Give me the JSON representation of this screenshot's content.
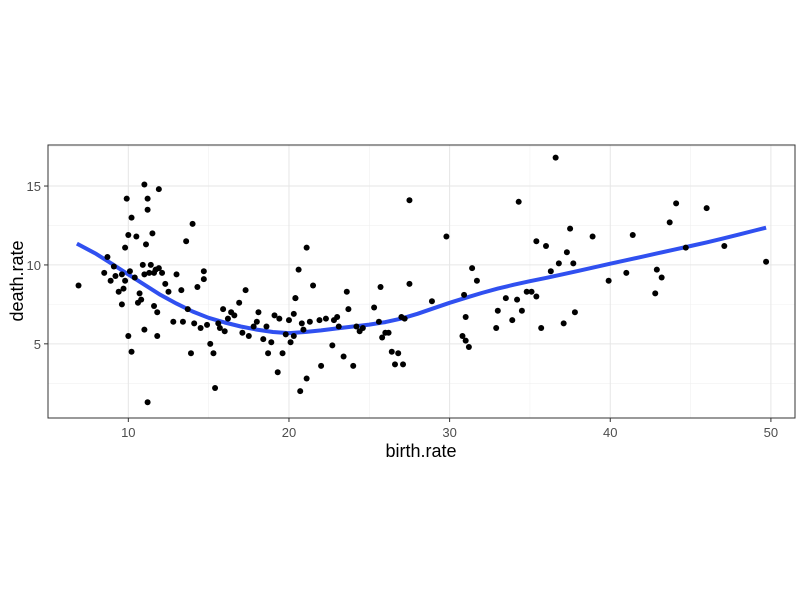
{
  "chart_data": {
    "type": "scatter",
    "xlabel": "birth.rate",
    "ylabel": "death.rate",
    "xlim": [
      5.0,
      51.5
    ],
    "ylim": [
      0.3,
      17.6
    ],
    "x_ticks": [
      10,
      20,
      30,
      40,
      50
    ],
    "y_ticks": [
      5,
      10,
      15
    ],
    "x_tick_labels": [
      "10",
      "20",
      "30",
      "40",
      "50"
    ],
    "y_tick_labels": [
      "5",
      "10",
      "15"
    ],
    "grid": true,
    "legend": "none",
    "point_color": "#000000",
    "smooth_color": "#3050F0",
    "points": [
      [
        6.9,
        8.7
      ],
      [
        8.5,
        9.5
      ],
      [
        8.7,
        10.5
      ],
      [
        8.9,
        9.0
      ],
      [
        9.1,
        9.9
      ],
      [
        9.2,
        9.3
      ],
      [
        9.4,
        8.3
      ],
      [
        9.6,
        7.5
      ],
      [
        9.6,
        9.4
      ],
      [
        9.7,
        8.5
      ],
      [
        9.8,
        11.1
      ],
      [
        9.8,
        9.0
      ],
      [
        9.9,
        14.2
      ],
      [
        10.0,
        5.5
      ],
      [
        10.0,
        11.9
      ],
      [
        10.1,
        9.6
      ],
      [
        10.2,
        13.0
      ],
      [
        10.2,
        4.5
      ],
      [
        10.4,
        9.2
      ],
      [
        10.5,
        11.8
      ],
      [
        10.6,
        7.6
      ],
      [
        10.7,
        8.2
      ],
      [
        10.8,
        7.8
      ],
      [
        10.9,
        10.0
      ],
      [
        11.0,
        9.4
      ],
      [
        11.0,
        15.1
      ],
      [
        11.1,
        11.3
      ],
      [
        11.2,
        14.2
      ],
      [
        11.2,
        13.5
      ],
      [
        11.3,
        9.5
      ],
      [
        11.4,
        10.0
      ],
      [
        11.5,
        12.0
      ],
      [
        11.6,
        9.5
      ],
      [
        11.7,
        9.7
      ],
      [
        11.8,
        7.0
      ],
      [
        11.8,
        5.5
      ],
      [
        11.9,
        14.8
      ],
      [
        11.9,
        9.8
      ],
      [
        12.1,
        9.5
      ],
      [
        12.3,
        8.8
      ],
      [
        11.0,
        5.9
      ],
      [
        11.2,
        1.3
      ],
      [
        11.6,
        7.4
      ],
      [
        12.5,
        8.3
      ],
      [
        12.8,
        6.4
      ],
      [
        13.0,
        9.4
      ],
      [
        13.3,
        8.4
      ],
      [
        13.4,
        6.4
      ],
      [
        13.6,
        11.5
      ],
      [
        13.7,
        7.2
      ],
      [
        13.9,
        4.4
      ],
      [
        14.0,
        12.6
      ],
      [
        14.3,
        8.6
      ],
      [
        14.1,
        6.3
      ],
      [
        14.5,
        6.0
      ],
      [
        14.7,
        9.6
      ],
      [
        14.7,
        9.1
      ],
      [
        14.9,
        6.2
      ],
      [
        15.1,
        5.0
      ],
      [
        15.3,
        4.4
      ],
      [
        15.4,
        2.2
      ],
      [
        15.6,
        6.3
      ],
      [
        15.7,
        6.0
      ],
      [
        15.9,
        7.2
      ],
      [
        16.0,
        5.8
      ],
      [
        16.2,
        6.6
      ],
      [
        16.4,
        7.0
      ],
      [
        16.6,
        6.8
      ],
      [
        16.9,
        7.6
      ],
      [
        17.1,
        5.7
      ],
      [
        17.3,
        8.4
      ],
      [
        17.5,
        5.5
      ],
      [
        17.8,
        6.1
      ],
      [
        18.0,
        6.4
      ],
      [
        18.1,
        7.0
      ],
      [
        18.4,
        5.3
      ],
      [
        18.6,
        6.1
      ],
      [
        18.7,
        4.4
      ],
      [
        18.9,
        5.1
      ],
      [
        19.1,
        6.8
      ],
      [
        19.3,
        3.2
      ],
      [
        19.4,
        6.6
      ],
      [
        19.6,
        4.4
      ],
      [
        19.8,
        5.6
      ],
      [
        20.0,
        6.5
      ],
      [
        20.1,
        5.1
      ],
      [
        20.3,
        6.9
      ],
      [
        20.3,
        5.5
      ],
      [
        20.4,
        7.9
      ],
      [
        20.6,
        9.7
      ],
      [
        20.7,
        2.0
      ],
      [
        20.8,
        6.3
      ],
      [
        20.9,
        5.9
      ],
      [
        21.1,
        2.8
      ],
      [
        21.1,
        11.1
      ],
      [
        21.3,
        6.4
      ],
      [
        21.5,
        8.7
      ],
      [
        20.4,
        7.9
      ],
      [
        21.9,
        6.5
      ],
      [
        22.0,
        3.6
      ],
      [
        22.3,
        6.6
      ],
      [
        22.7,
        4.9
      ],
      [
        22.8,
        6.5
      ],
      [
        23.0,
        6.7
      ],
      [
        23.1,
        6.1
      ],
      [
        23.4,
        4.2
      ],
      [
        23.6,
        8.3
      ],
      [
        23.7,
        7.2
      ],
      [
        24.0,
        3.6
      ],
      [
        24.2,
        6.1
      ],
      [
        24.4,
        5.8
      ],
      [
        24.6,
        6.0
      ],
      [
        25.3,
        7.3
      ],
      [
        25.6,
        6.4
      ],
      [
        25.7,
        8.6
      ],
      [
        25.8,
        5.4
      ],
      [
        26.0,
        5.7
      ],
      [
        26.2,
        5.7
      ],
      [
        26.4,
        4.5
      ],
      [
        26.6,
        3.7
      ],
      [
        26.8,
        4.4
      ],
      [
        27.0,
        6.7
      ],
      [
        27.1,
        3.7
      ],
      [
        27.2,
        6.6
      ],
      [
        27.5,
        14.1
      ],
      [
        27.5,
        8.8
      ],
      [
        28.9,
        7.7
      ],
      [
        29.8,
        11.8
      ],
      [
        30.8,
        5.5
      ],
      [
        30.9,
        8.1
      ],
      [
        31.0,
        6.7
      ],
      [
        31.0,
        5.2
      ],
      [
        31.2,
        4.8
      ],
      [
        31.4,
        9.8
      ],
      [
        31.7,
        9.0
      ],
      [
        32.9,
        6.0
      ],
      [
        33.0,
        7.1
      ],
      [
        33.5,
        7.9
      ],
      [
        33.9,
        6.5
      ],
      [
        34.2,
        7.8
      ],
      [
        34.3,
        14.0
      ],
      [
        34.5,
        7.1
      ],
      [
        34.8,
        8.3
      ],
      [
        35.1,
        8.3
      ],
      [
        35.4,
        11.5
      ],
      [
        35.4,
        8.0
      ],
      [
        35.7,
        6.0
      ],
      [
        36.0,
        11.2
      ],
      [
        36.3,
        9.6
      ],
      [
        36.6,
        16.8
      ],
      [
        36.8,
        10.1
      ],
      [
        37.1,
        6.3
      ],
      [
        37.3,
        10.8
      ],
      [
        37.5,
        12.3
      ],
      [
        37.7,
        10.1
      ],
      [
        37.8,
        7.0
      ],
      [
        38.9,
        11.8
      ],
      [
        39.9,
        9.0
      ],
      [
        41.0,
        9.5
      ],
      [
        41.4,
        11.9
      ],
      [
        42.8,
        8.2
      ],
      [
        42.9,
        9.7
      ],
      [
        43.2,
        9.2
      ],
      [
        43.7,
        12.7
      ],
      [
        44.1,
        13.9
      ],
      [
        44.7,
        11.1
      ],
      [
        46.0,
        13.6
      ],
      [
        47.1,
        11.2
      ],
      [
        49.7,
        10.2
      ]
    ],
    "smooth": [
      [
        6.8,
        11.35
      ],
      [
        8.0,
        10.7
      ],
      [
        9.0,
        10.05
      ],
      [
        10.0,
        9.4
      ],
      [
        11.0,
        8.75
      ],
      [
        12.0,
        8.1
      ],
      [
        13.0,
        7.55
      ],
      [
        14.0,
        7.05
      ],
      [
        15.0,
        6.65
      ],
      [
        16.0,
        6.35
      ],
      [
        17.0,
        6.1
      ],
      [
        18.0,
        5.9
      ],
      [
        19.0,
        5.75
      ],
      [
        20.0,
        5.68
      ],
      [
        21.0,
        5.75
      ],
      [
        22.0,
        5.85
      ],
      [
        23.0,
        5.98
      ],
      [
        24.0,
        6.1
      ],
      [
        25.0,
        6.22
      ],
      [
        26.0,
        6.38
      ],
      [
        27.0,
        6.6
      ],
      [
        28.0,
        6.9
      ],
      [
        29.0,
        7.25
      ],
      [
        30.0,
        7.6
      ],
      [
        31.0,
        7.92
      ],
      [
        32.0,
        8.22
      ],
      [
        33.0,
        8.5
      ],
      [
        34.0,
        8.75
      ],
      [
        35.0,
        8.97
      ],
      [
        36.0,
        9.18
      ],
      [
        37.0,
        9.4
      ],
      [
        38.0,
        9.62
      ],
      [
        39.0,
        9.85
      ],
      [
        40.0,
        10.08
      ],
      [
        41.0,
        10.3
      ],
      [
        42.0,
        10.52
      ],
      [
        43.0,
        10.75
      ],
      [
        44.0,
        10.97
      ],
      [
        45.0,
        11.2
      ],
      [
        46.0,
        11.43
      ],
      [
        47.0,
        11.67
      ],
      [
        48.0,
        11.92
      ],
      [
        49.0,
        12.18
      ],
      [
        49.7,
        12.36
      ]
    ]
  }
}
